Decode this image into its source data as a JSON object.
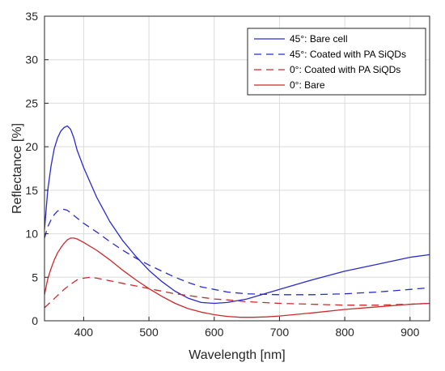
{
  "chart_data": {
    "type": "line",
    "title": "",
    "xlabel": "Wavelength [nm]",
    "ylabel": "Reflectance [%]",
    "xlim": [
      340,
      930
    ],
    "ylim": [
      0,
      35
    ],
    "xticks": [
      400,
      500,
      600,
      700,
      800,
      900
    ],
    "yticks": [
      0,
      5,
      10,
      15,
      20,
      25,
      30,
      35
    ],
    "grid": true,
    "legend_position": "top-right",
    "series": [
      {
        "name": "45°: Bare cell",
        "color": "#2a2ad0",
        "dash": "solid",
        "x": [
          340,
          345,
          350,
          355,
          360,
          365,
          370,
          375,
          380,
          385,
          390,
          400,
          420,
          440,
          460,
          480,
          500,
          520,
          540,
          560,
          580,
          600,
          620,
          650,
          700,
          750,
          800,
          850,
          900,
          930
        ],
        "y": [
          10.5,
          15,
          17.8,
          19.8,
          21,
          21.8,
          22.2,
          22.4,
          22,
          21,
          19.6,
          17.6,
          14.2,
          11.4,
          9.2,
          7.4,
          5.8,
          4.5,
          3.4,
          2.6,
          2.1,
          2.0,
          2.1,
          2.5,
          3.6,
          4.7,
          5.7,
          6.5,
          7.3,
          7.6
        ]
      },
      {
        "name": "45°: Coated with PA SiQDs",
        "color": "#2a2ad0",
        "dash": "dashed",
        "x": [
          340,
          345,
          350,
          355,
          360,
          365,
          370,
          375,
          380,
          390,
          400,
          420,
          440,
          460,
          480,
          500,
          520,
          540,
          560,
          580,
          600,
          620,
          650,
          700,
          750,
          800,
          850,
          900,
          930
        ],
        "y": [
          9.5,
          10.8,
          11.6,
          12.2,
          12.6,
          12.8,
          12.8,
          12.7,
          12.4,
          11.8,
          11.2,
          10.2,
          9.1,
          8.1,
          7.2,
          6.4,
          5.7,
          5.0,
          4.4,
          3.9,
          3.6,
          3.3,
          3.1,
          3.0,
          3.0,
          3.1,
          3.3,
          3.6,
          3.8
        ]
      },
      {
        "name": "0°: Coated with PA SiQDs",
        "color": "#cc2a2a",
        "dash": "dashed",
        "x": [
          340,
          350,
          360,
          370,
          380,
          390,
          400,
          410,
          420,
          440,
          460,
          480,
          500,
          520,
          540,
          560,
          580,
          600,
          620,
          650,
          700,
          750,
          800,
          850,
          900,
          930
        ],
        "y": [
          1.5,
          2.2,
          2.9,
          3.6,
          4.2,
          4.7,
          4.9,
          5.0,
          4.9,
          4.6,
          4.3,
          4.0,
          3.7,
          3.4,
          3.1,
          2.9,
          2.7,
          2.5,
          2.4,
          2.2,
          2.0,
          1.9,
          1.8,
          1.8,
          1.9,
          2.0
        ]
      },
      {
        "name": "0°: Bare",
        "color": "#cc2a2a",
        "dash": "solid",
        "x": [
          340,
          345,
          350,
          355,
          360,
          365,
          370,
          375,
          380,
          385,
          390,
          400,
          420,
          440,
          460,
          480,
          500,
          520,
          540,
          560,
          580,
          600,
          620,
          640,
          660,
          680,
          700,
          750,
          800,
          850,
          900,
          930
        ],
        "y": [
          3.0,
          4.8,
          6.0,
          7.0,
          7.8,
          8.4,
          8.9,
          9.3,
          9.5,
          9.5,
          9.4,
          9.0,
          8.1,
          7.0,
          5.8,
          4.7,
          3.7,
          2.8,
          2.0,
          1.4,
          1.0,
          0.7,
          0.5,
          0.4,
          0.4,
          0.45,
          0.55,
          0.9,
          1.3,
          1.6,
          1.9,
          2.0
        ]
      }
    ]
  }
}
